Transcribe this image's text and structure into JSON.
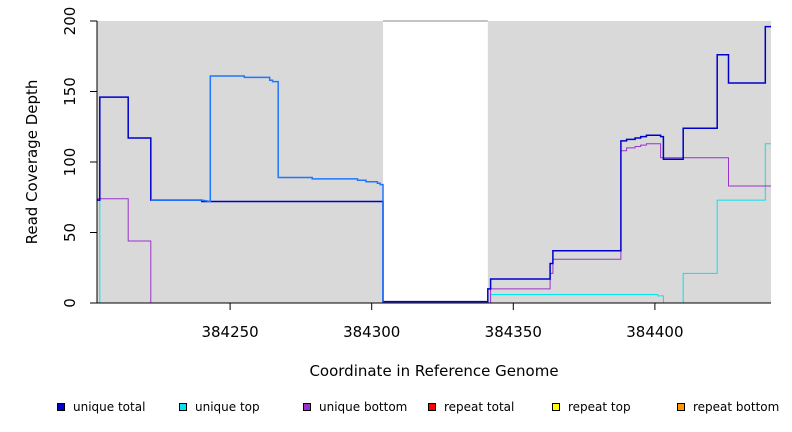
{
  "chart_data": {
    "type": "line",
    "title": "",
    "xlabel": "Coordinate in Reference Genome",
    "ylabel": "Read Coverage Depth",
    "xlim": [
      384203,
      384441
    ],
    "ylim": [
      0,
      200
    ],
    "x_ticks": [
      384250,
      384300,
      384350,
      384400
    ],
    "y_ticks": [
      0,
      50,
      100,
      150,
      200
    ],
    "grid": false,
    "legend_position": "bottom",
    "shaded_regions": [
      [
        384203,
        384304
      ],
      [
        384341,
        384441
      ]
    ],
    "series": [
      {
        "name": "unique total",
        "color": "#0000cd",
        "x": [
          384203,
          384204,
          384204,
          384214,
          384214,
          384222,
          384222,
          384240,
          384240,
          384244,
          384244,
          384255,
          384255,
          384264,
          384264,
          384266,
          384266,
          384279,
          384279,
          384295,
          384295,
          384298,
          384298,
          384300,
          384300,
          384304,
          384304,
          384341,
          384341,
          384342,
          384342,
          384363,
          384363,
          384364,
          384364,
          384387,
          384387,
          384388,
          384388,
          384390,
          384390,
          384393,
          384393,
          384395,
          384395,
          384397,
          384397,
          384402,
          384402,
          384403,
          384403,
          384409,
          384409,
          384410,
          384410,
          384422,
          384422,
          384426,
          384426,
          384439,
          384439,
          384441
        ],
        "y": [
          73,
          73,
          146,
          146,
          117,
          117,
          73,
          73,
          72,
          72,
          72,
          72,
          72,
          72,
          72,
          72,
          72,
          72,
          72,
          72,
          72,
          72,
          72,
          72,
          72,
          72,
          1,
          1,
          10,
          10,
          17,
          17,
          28,
          28,
          37,
          37,
          37,
          37,
          115,
          115,
          116,
          116,
          117,
          117,
          118,
          118,
          119,
          119,
          118,
          118,
          102,
          102,
          102,
          102,
          124,
          124,
          176,
          176,
          156,
          156,
          196,
          196
        ]
      },
      {
        "name": "unique top",
        "color": "#00e5ee",
        "x": [
          384203,
          384204,
          384204,
          384221,
          384221,
          384304,
          384304,
          384341,
          384341,
          384342,
          384342,
          384401,
          384401,
          384403,
          384403,
          384410,
          384410,
          384422,
          384422,
          384439,
          384439,
          384441
        ],
        "y": [
          73,
          73,
          0,
          0,
          0,
          0,
          0,
          0,
          0,
          0,
          6,
          6,
          5,
          5,
          0,
          0,
          21,
          21,
          73,
          73,
          113,
          113
        ],
        "hidden_spans": [
          [
            384205,
            384222
          ]
        ]
      },
      {
        "name": "unique bottom",
        "color": "#9932cc",
        "x": [
          384203,
          384214,
          384214,
          384222,
          384222,
          384304,
          384304,
          384341,
          384341,
          384342,
          384342,
          384363,
          384363,
          384364,
          384364,
          384387,
          384387,
          384388,
          384388,
          384390,
          384390,
          384393,
          384393,
          384395,
          384395,
          384397,
          384397,
          384402,
          384402,
          384426,
          384426,
          384441
        ],
        "y": [
          74,
          74,
          44,
          44,
          0,
          0,
          0,
          0,
          0,
          0,
          10,
          10,
          21,
          21,
          31,
          31,
          31,
          31,
          108,
          108,
          110,
          110,
          111,
          111,
          112,
          112,
          113,
          113,
          103,
          103,
          83,
          83
        ]
      },
      {
        "name": "repeat total",
        "color": "#ff0000",
        "x": [
          384203,
          384441
        ],
        "y": [
          0,
          0
        ]
      },
      {
        "name": "repeat top",
        "color": "#ffff00",
        "x": [
          384203,
          384441
        ],
        "y": [
          0,
          0
        ]
      },
      {
        "name": "repeat bottom",
        "color": "#ff9900",
        "x": [
          384203,
          384441
        ],
        "y": [
          0,
          0
        ]
      },
      {
        "name": "",
        "color": "#1e78ff",
        "x": [
          384222,
          384222,
          384240,
          384240,
          384243,
          384243,
          384255,
          384255,
          384264,
          384264,
          384265,
          384265,
          384267,
          384267,
          384279,
          384279,
          384295,
          384295,
          384298,
          384298,
          384302,
          384302,
          384303,
          384303,
          384304,
          384304
        ],
        "y": [
          73,
          73,
          73,
          73,
          72,
          161,
          161,
          160,
          160,
          158,
          158,
          157,
          157,
          89,
          89,
          88,
          88,
          87,
          87,
          86,
          86,
          85,
          85,
          84,
          84,
          1
        ]
      }
    ]
  }
}
